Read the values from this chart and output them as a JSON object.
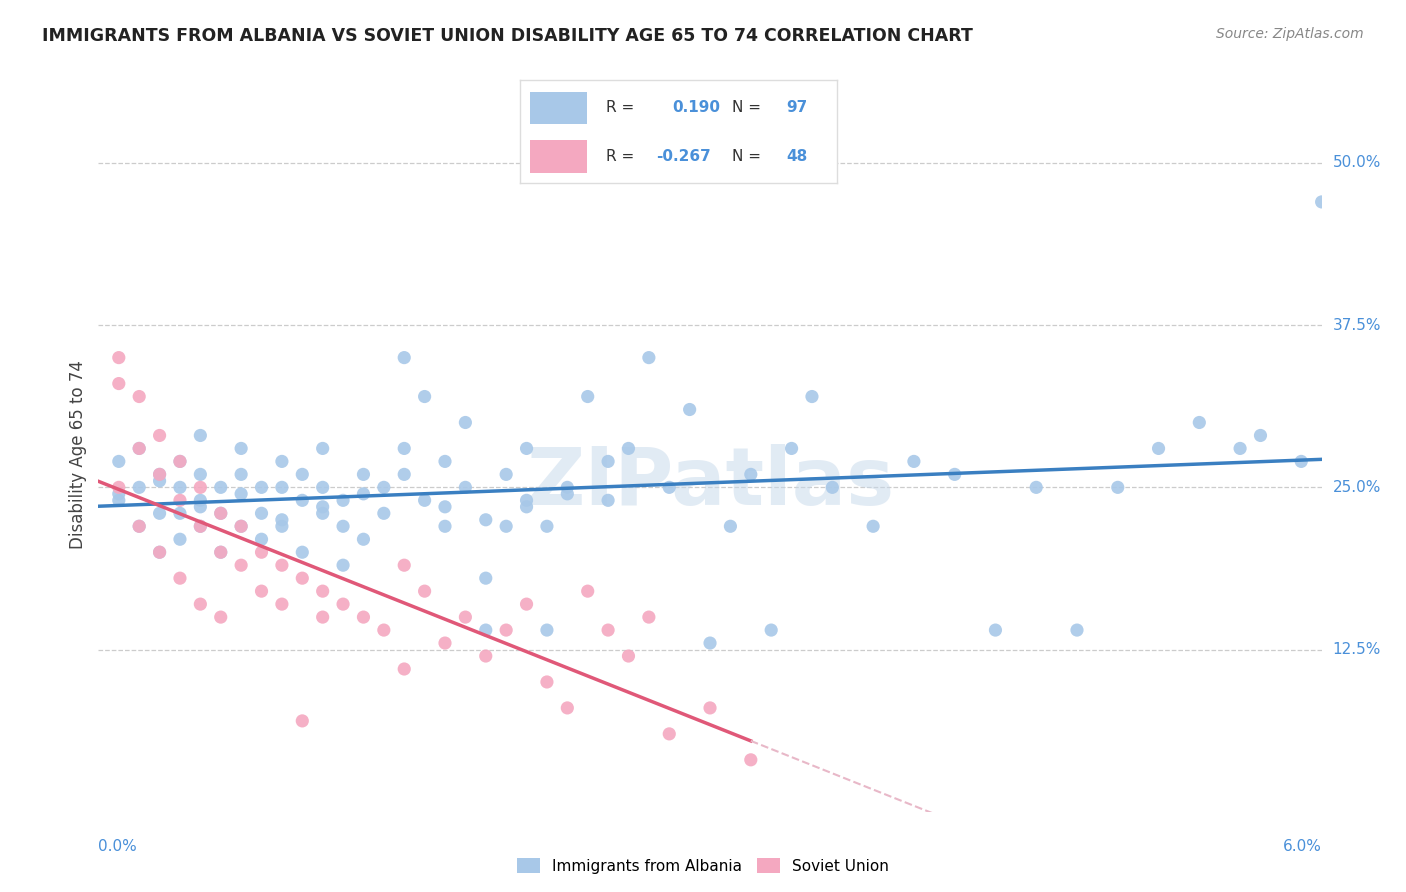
{
  "title": "IMMIGRANTS FROM ALBANIA VS SOVIET UNION DISABILITY AGE 65 TO 74 CORRELATION CHART",
  "source": "Source: ZipAtlas.com",
  "ylabel": "Disability Age 65 to 74",
  "xmin": 0.0,
  "xmax": 0.06,
  "ymin": 0.0,
  "ymax": 0.55,
  "albania_R": 0.19,
  "albania_N": 97,
  "soviet_R": -0.267,
  "soviet_N": 48,
  "albania_color": "#a8c8e8",
  "soviet_color": "#f4a8c0",
  "albania_line_color": "#3a7fc1",
  "soviet_line_color": "#e05878",
  "soviet_line_dashed_color": "#e8b8c8",
  "ytick_vals": [
    0.125,
    0.25,
    0.375,
    0.5
  ],
  "ytick_labels": [
    "12.5%",
    "25.0%",
    "37.5%",
    "50.0%"
  ],
  "watermark": "ZIPatlas",
  "albania_scatter_x": [
    0.001,
    0.001,
    0.002,
    0.002,
    0.002,
    0.003,
    0.003,
    0.003,
    0.004,
    0.004,
    0.004,
    0.004,
    0.005,
    0.005,
    0.005,
    0.005,
    0.006,
    0.006,
    0.006,
    0.007,
    0.007,
    0.007,
    0.008,
    0.008,
    0.008,
    0.009,
    0.009,
    0.009,
    0.01,
    0.01,
    0.01,
    0.011,
    0.011,
    0.011,
    0.012,
    0.012,
    0.012,
    0.013,
    0.013,
    0.014,
    0.014,
    0.015,
    0.015,
    0.016,
    0.016,
    0.017,
    0.017,
    0.018,
    0.018,
    0.019,
    0.019,
    0.02,
    0.02,
    0.021,
    0.021,
    0.022,
    0.022,
    0.023,
    0.024,
    0.025,
    0.025,
    0.026,
    0.027,
    0.028,
    0.029,
    0.03,
    0.031,
    0.032,
    0.033,
    0.034,
    0.035,
    0.036,
    0.038,
    0.04,
    0.042,
    0.044,
    0.046,
    0.048,
    0.05,
    0.052,
    0.054,
    0.056,
    0.057,
    0.059,
    0.06,
    0.001,
    0.003,
    0.005,
    0.007,
    0.009,
    0.011,
    0.013,
    0.015,
    0.017,
    0.019,
    0.021,
    0.023
  ],
  "albania_scatter_y": [
    0.24,
    0.27,
    0.25,
    0.22,
    0.28,
    0.23,
    0.26,
    0.2,
    0.21,
    0.25,
    0.27,
    0.23,
    0.22,
    0.26,
    0.24,
    0.29,
    0.2,
    0.23,
    0.25,
    0.22,
    0.26,
    0.28,
    0.21,
    0.23,
    0.25,
    0.25,
    0.27,
    0.22,
    0.2,
    0.24,
    0.26,
    0.23,
    0.25,
    0.28,
    0.19,
    0.22,
    0.24,
    0.21,
    0.26,
    0.23,
    0.25,
    0.35,
    0.28,
    0.32,
    0.24,
    0.27,
    0.22,
    0.3,
    0.25,
    0.14,
    0.18,
    0.22,
    0.26,
    0.28,
    0.24,
    0.14,
    0.22,
    0.25,
    0.32,
    0.27,
    0.24,
    0.28,
    0.35,
    0.25,
    0.31,
    0.13,
    0.22,
    0.26,
    0.14,
    0.28,
    0.32,
    0.25,
    0.22,
    0.27,
    0.26,
    0.14,
    0.25,
    0.14,
    0.25,
    0.28,
    0.3,
    0.28,
    0.29,
    0.27,
    0.47,
    0.245,
    0.255,
    0.235,
    0.245,
    0.225,
    0.235,
    0.245,
    0.26,
    0.235,
    0.225,
    0.235,
    0.245
  ],
  "soviet_scatter_x": [
    0.001,
    0.001,
    0.001,
    0.002,
    0.002,
    0.002,
    0.003,
    0.003,
    0.003,
    0.004,
    0.004,
    0.004,
    0.005,
    0.005,
    0.005,
    0.006,
    0.006,
    0.006,
    0.007,
    0.007,
    0.008,
    0.008,
    0.009,
    0.009,
    0.01,
    0.01,
    0.011,
    0.011,
    0.012,
    0.013,
    0.014,
    0.015,
    0.016,
    0.017,
    0.018,
    0.019,
    0.02,
    0.021,
    0.022,
    0.023,
    0.024,
    0.025,
    0.026,
    0.027,
    0.028,
    0.03,
    0.032,
    0.015
  ],
  "soviet_scatter_y": [
    0.35,
    0.33,
    0.25,
    0.32,
    0.28,
    0.22,
    0.29,
    0.26,
    0.2,
    0.27,
    0.24,
    0.18,
    0.25,
    0.22,
    0.16,
    0.23,
    0.2,
    0.15,
    0.22,
    0.19,
    0.2,
    0.17,
    0.19,
    0.16,
    0.18,
    0.07,
    0.17,
    0.15,
    0.16,
    0.15,
    0.14,
    0.19,
    0.17,
    0.13,
    0.15,
    0.12,
    0.14,
    0.16,
    0.1,
    0.08,
    0.17,
    0.14,
    0.12,
    0.15,
    0.06,
    0.08,
    0.04,
    0.11
  ]
}
